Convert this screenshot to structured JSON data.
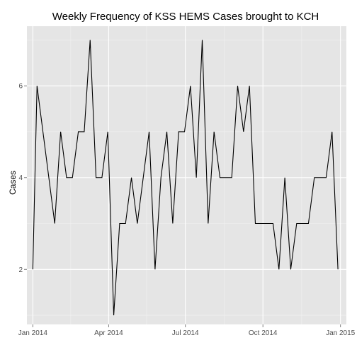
{
  "chart_data": {
    "type": "line",
    "title": "Weekly Frequency of KSS HEMS Cases brought to KCH",
    "xlabel": "",
    "ylabel": "Cases",
    "xlim": [
      "2013-12-25",
      "2015-01-08"
    ],
    "ylim": [
      0.8,
      7.3
    ],
    "x_ticks": [
      {
        "value": "2014-01-01",
        "label": "Jan 2014"
      },
      {
        "value": "2014-04-01",
        "label": "Apr 2014"
      },
      {
        "value": "2014-07-01",
        "label": "Jul 2014"
      },
      {
        "value": "2014-10-01",
        "label": "Oct 2014"
      },
      {
        "value": "2015-01-01",
        "label": "Jan 2015"
      }
    ],
    "y_ticks": [
      {
        "value": 2,
        "label": "2"
      },
      {
        "value": 4,
        "label": "4"
      },
      {
        "value": 6,
        "label": "6"
      }
    ],
    "grid": true,
    "series": [
      {
        "color": "#000000",
        "x": [
          "2014-01-01",
          "2014-01-06",
          "2014-01-13",
          "2014-01-20",
          "2014-01-27",
          "2014-02-03",
          "2014-02-10",
          "2014-02-17",
          "2014-02-24",
          "2014-03-03",
          "2014-03-10",
          "2014-03-17",
          "2014-03-24",
          "2014-03-31",
          "2014-04-07",
          "2014-04-14",
          "2014-04-21",
          "2014-04-28",
          "2014-05-05",
          "2014-05-12",
          "2014-05-19",
          "2014-05-26",
          "2014-06-02",
          "2014-06-09",
          "2014-06-16",
          "2014-06-23",
          "2014-06-30",
          "2014-07-07",
          "2014-07-14",
          "2014-07-21",
          "2014-07-28",
          "2014-08-04",
          "2014-08-11",
          "2014-08-18",
          "2014-08-25",
          "2014-09-01",
          "2014-09-08",
          "2014-09-15",
          "2014-09-22",
          "2014-09-29",
          "2014-10-06",
          "2014-10-13",
          "2014-10-20",
          "2014-10-27",
          "2014-11-03",
          "2014-11-10",
          "2014-11-17",
          "2014-11-24",
          "2014-12-01",
          "2014-12-08",
          "2014-12-15",
          "2014-12-22",
          "2014-12-29"
        ],
        "y": [
          2,
          6,
          5,
          4,
          3,
          5,
          4,
          4,
          5,
          5,
          7,
          4,
          4,
          5,
          1,
          3,
          3,
          4,
          3,
          4,
          5,
          2,
          4,
          5,
          3,
          5,
          5,
          6,
          4,
          7,
          3,
          5,
          4,
          4,
          4,
          6,
          5,
          6,
          3,
          3,
          3,
          3,
          2,
          4,
          2,
          3,
          3,
          3,
          4,
          4,
          4,
          5,
          2
        ]
      }
    ]
  }
}
